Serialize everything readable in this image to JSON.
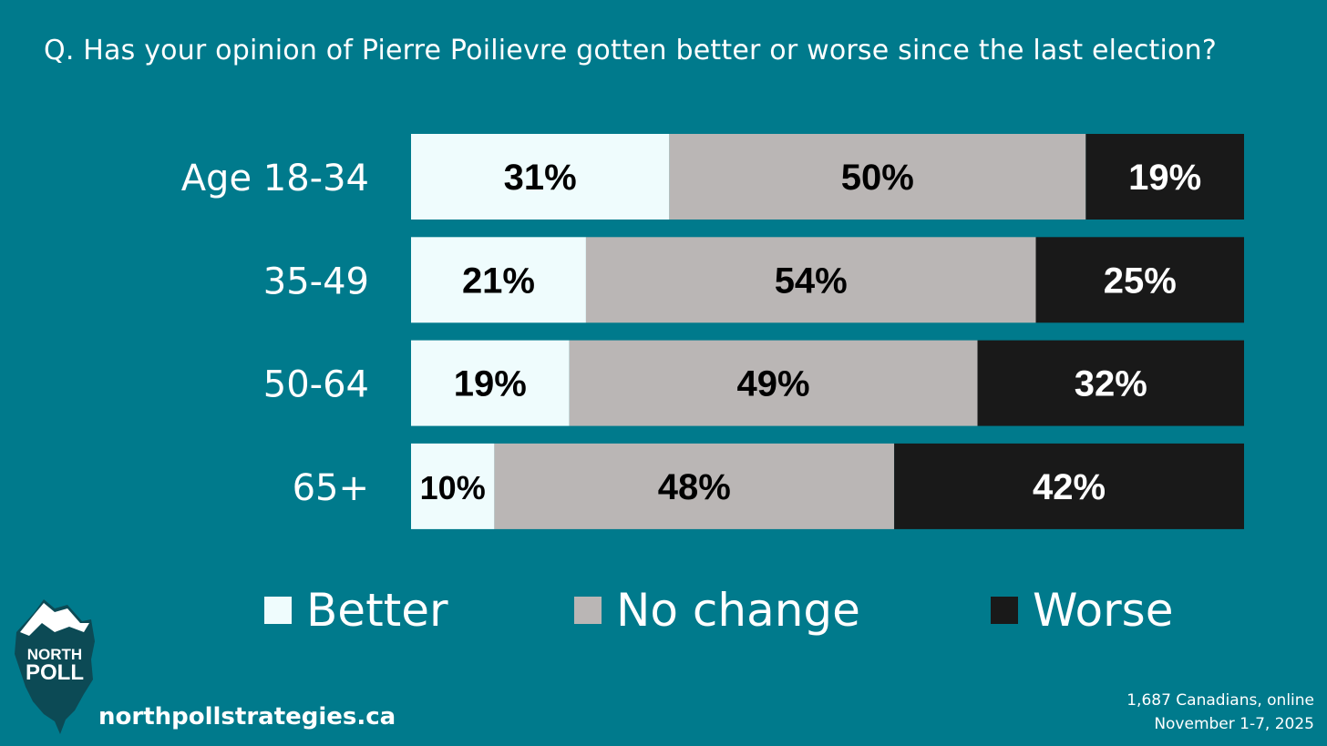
{
  "title": "Q. Has your opinion of Pierre Poilievre gotten better or worse since the last election?",
  "chart_data": {
    "type": "bar",
    "orientation": "horizontal",
    "stacked": true,
    "categories": [
      "Age 18-34",
      "35-49",
      "50-64",
      "65+"
    ],
    "series": [
      {
        "name": "Better",
        "values": [
          31,
          21,
          19,
          10
        ],
        "color": "#effcfd",
        "label_color": "#000000"
      },
      {
        "name": "No change",
        "values": [
          50,
          54,
          49,
          48
        ],
        "color": "#bab6b5",
        "label_color": "#000000"
      },
      {
        "name": "Worse",
        "values": [
          19,
          25,
          32,
          42
        ],
        "color": "#191919",
        "label_color": "#ffffff"
      }
    ],
    "value_suffix": "%",
    "xlim": [
      0,
      100
    ],
    "legend_position": "bottom"
  },
  "logo": {
    "line1": "NORTH",
    "line2": "POLL"
  },
  "website": "northpollstrategies.ca",
  "source": {
    "line1": "1,687 Canadians, online",
    "line2": "November 1-7, 2025"
  },
  "colors": {
    "background": "#007a8c",
    "logo_dark": "#0c4a55"
  }
}
